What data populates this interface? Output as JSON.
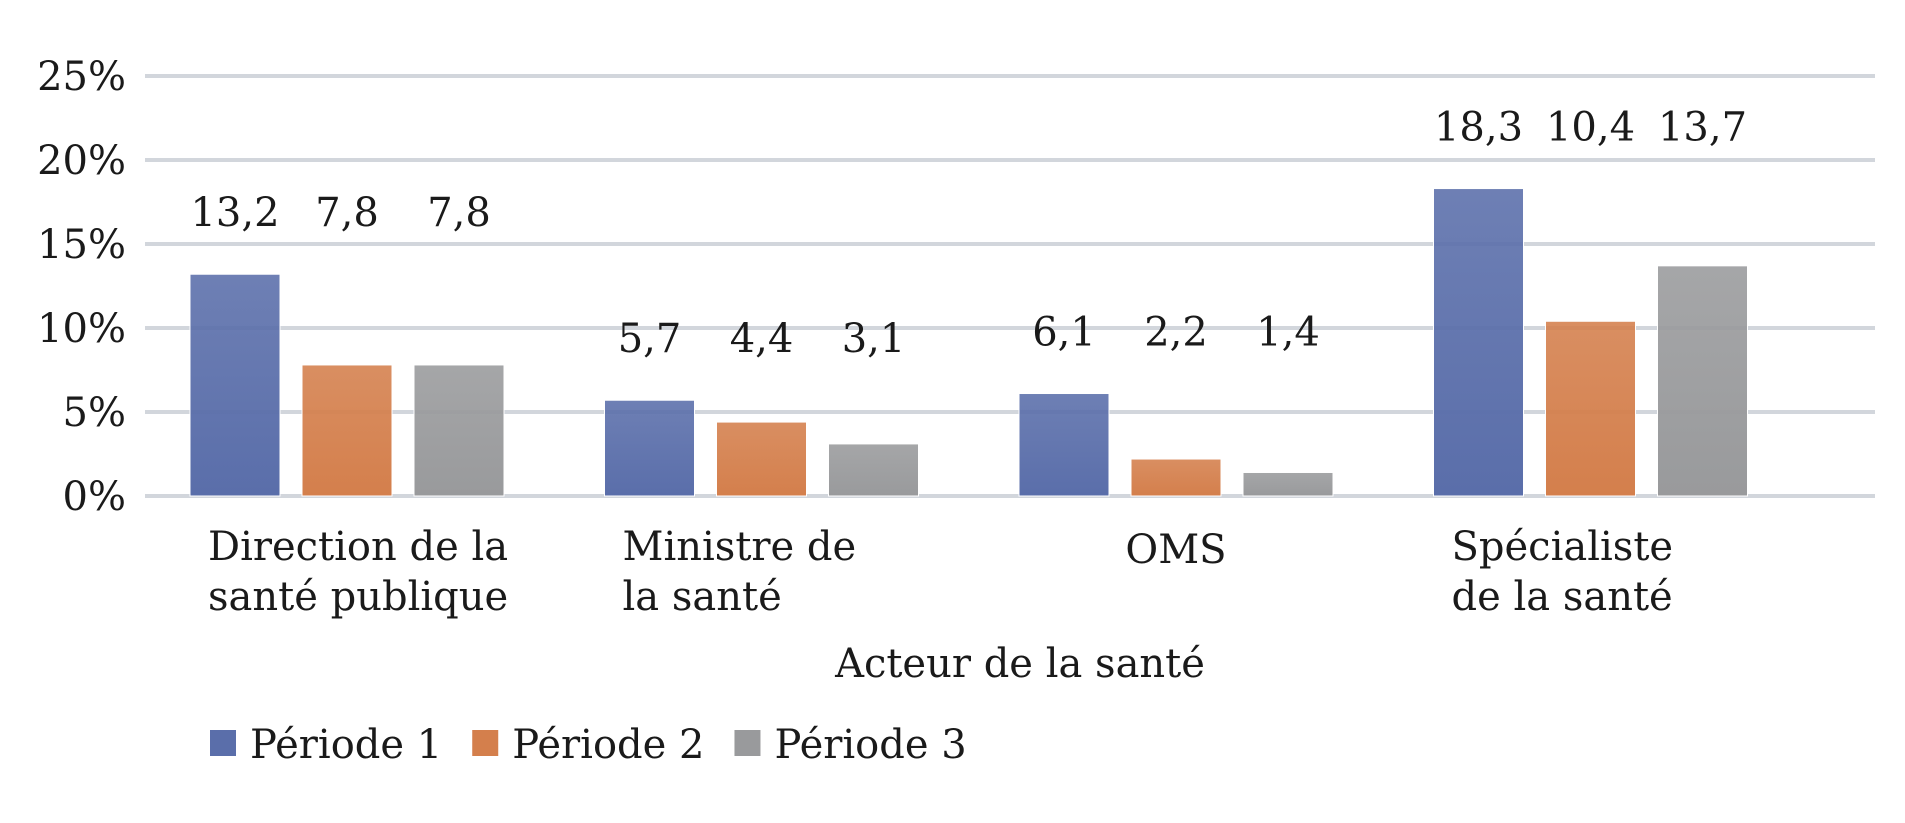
{
  "chart_data": {
    "type": "bar",
    "title": "",
    "xlabel": "Acteur de la santé",
    "ylabel": "",
    "categories": [
      [
        "Direction de la",
        "santé publique"
      ],
      [
        "Ministre de",
        "la santé"
      ],
      [
        "OMS"
      ],
      [
        "Spécialiste",
        "de la santé"
      ]
    ],
    "series": [
      {
        "name": "Période 1",
        "color": "#5a6eaa",
        "values": [
          13.2,
          5.7,
          6.1,
          18.3
        ],
        "labels": [
          "13,2",
          "5,7",
          "6,1",
          "18,3"
        ]
      },
      {
        "name": "Période 2",
        "color": "#d47f4c",
        "values": [
          7.8,
          4.4,
          2.2,
          10.4
        ],
        "labels": [
          "7,8",
          "4,4",
          "2,2",
          "10,4"
        ]
      },
      {
        "name": "Période 3",
        "color": "#999a9c",
        "values": [
          7.8,
          3.1,
          1.4,
          13.7
        ],
        "labels": [
          "7,8",
          "3,1",
          "1,4",
          "13,7"
        ]
      }
    ],
    "ylim": [
      0,
      25
    ],
    "yticks": [
      0,
      5,
      10,
      15,
      20,
      25
    ],
    "ytick_labels": [
      "0%",
      "5%",
      "10%",
      "15%",
      "20%",
      "25%"
    ],
    "grid": true,
    "legend_position": "bottom-left"
  }
}
